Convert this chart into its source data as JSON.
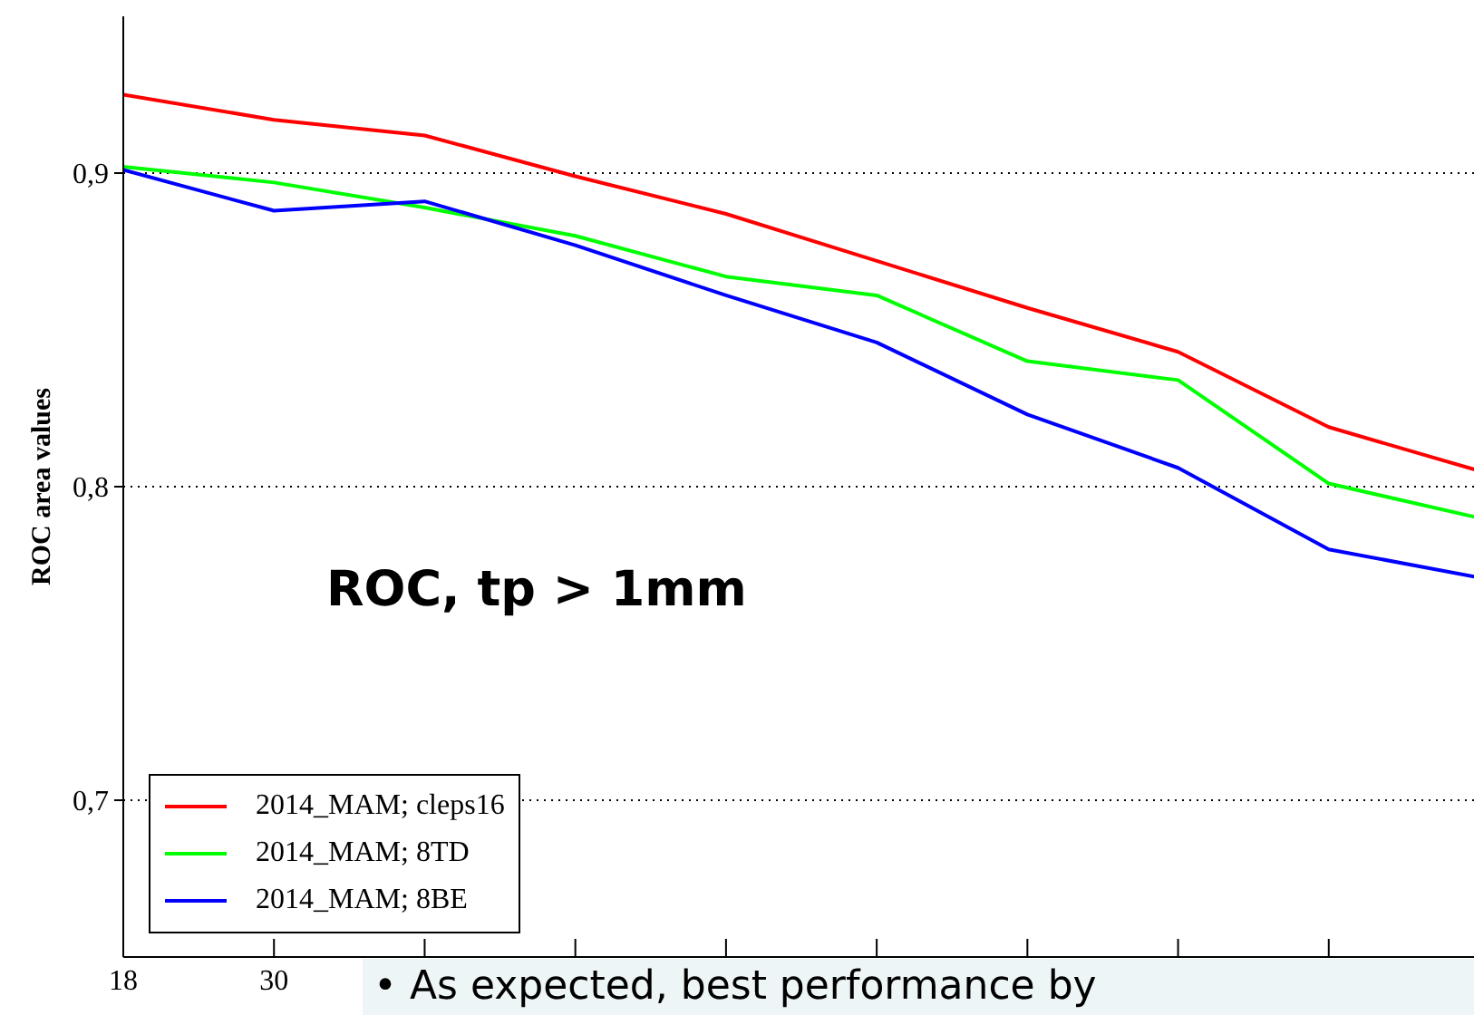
{
  "chart_data": {
    "type": "line",
    "ylabel": "ROC area values",
    "x": [
      18,
      30,
      42,
      54,
      66,
      78,
      90,
      102,
      114,
      126
    ],
    "series": [
      {
        "name": "2014_MAM; cleps16",
        "color": "#ff0000",
        "values": [
          0.925,
          0.917,
          0.912,
          0.899,
          0.887,
          0.872,
          0.857,
          0.843,
          0.819,
          0.805
        ]
      },
      {
        "name": "2014_MAM; 8TD",
        "color": "#00ff00",
        "values": [
          0.902,
          0.897,
          0.889,
          0.88,
          0.867,
          0.861,
          0.84,
          0.834,
          0.801,
          0.79
        ]
      },
      {
        "name": "2014_MAM; 8BE",
        "color": "#0000ff",
        "values": [
          0.901,
          0.888,
          0.891,
          0.877,
          0.861,
          0.846,
          0.823,
          0.806,
          0.78,
          0.771
        ]
      }
    ],
    "xlim": [
      18,
      126
    ],
    "xticks": [
      18,
      30,
      {
        "value": 42,
        "label": null
      },
      {
        "value": 54,
        "label": null
      },
      {
        "value": 66,
        "label": null
      },
      {
        "value": 78,
        "label": null
      },
      {
        "value": 90,
        "label": null
      },
      {
        "value": 102,
        "label": null
      },
      {
        "value": 114,
        "label": null
      },
      {
        "value": 126,
        "label": null
      }
    ],
    "ylim": [
      0.65,
      0.95
    ],
    "yticks": [
      {
        "value": 0.7,
        "label": "0,7"
      },
      {
        "value": 0.8,
        "label": "0,8"
      },
      {
        "value": 0.9,
        "label": "0,9"
      }
    ],
    "grid": "y",
    "legend": "bottom left",
    "marker": "none",
    "line_style": "solid",
    "annotations": [
      "ROC, tp > 1mm",
      "• As expected, best performance by"
    ]
  }
}
